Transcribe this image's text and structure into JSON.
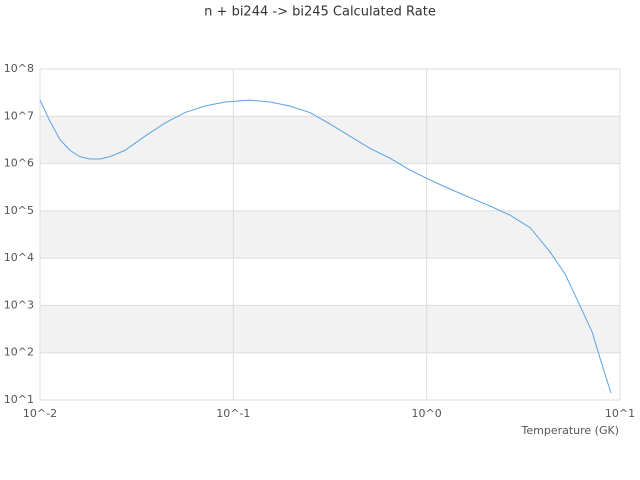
{
  "chart_data": {
    "type": "line",
    "title": "n + bi244 -> bi245 Calculated Rate",
    "x_label": "Temperature (GK)",
    "xscale": "log",
    "yscale": "log",
    "grid": true,
    "bands": true,
    "xlim": [
      0.01,
      10
    ],
    "ylim": [
      10,
      100000000
    ],
    "xticks": [
      {
        "value": 0.01,
        "label": "10^-2"
      },
      {
        "value": 0.1,
        "label": "10^-1"
      },
      {
        "value": 1,
        "label": "10^0"
      },
      {
        "value": 10,
        "label": "10^1"
      }
    ],
    "yticks": [
      {
        "value": 10,
        "label": "10^1"
      },
      {
        "value": 100,
        "label": "10^2"
      },
      {
        "value": 1000,
        "label": "10^3"
      },
      {
        "value": 10000,
        "label": "10^4"
      },
      {
        "value": 100000,
        "label": "10^5"
      },
      {
        "value": 1000000,
        "label": "10^6"
      },
      {
        "value": 10000000,
        "label": "10^7"
      },
      {
        "value": 100000000,
        "label": "10^8"
      }
    ],
    "series": [
      {
        "color": "#5aa3e8",
        "x": [
          0.01,
          0.0113,
          0.0127,
          0.0143,
          0.0161,
          0.0181,
          0.0204,
          0.023,
          0.0275,
          0.0349,
          0.0443,
          0.0562,
          0.0714,
          0.0906,
          0.122,
          0.155,
          0.196,
          0.249,
          0.316,
          0.401,
          0.509,
          0.646,
          0.82,
          1.04,
          1.32,
          1.68,
          2.13,
          2.7,
          3.43,
          4.35,
          5.2,
          6.2,
          7.16,
          7.88,
          8.98
        ],
        "values": [
          22000000,
          7600000,
          3200000,
          1900000,
          1400000,
          1250000,
          1250000,
          1400000,
          1900000,
          3800000,
          7200000,
          12000000,
          16500000,
          20000000,
          22000000,
          20000000,
          16500000,
          12000000,
          6900000,
          3800000,
          2100000,
          1300000,
          730000,
          450000,
          290000,
          190000,
          126000,
          81000,
          44000,
          13500,
          4600,
          1000,
          280,
          77,
          14
        ]
      }
    ]
  }
}
